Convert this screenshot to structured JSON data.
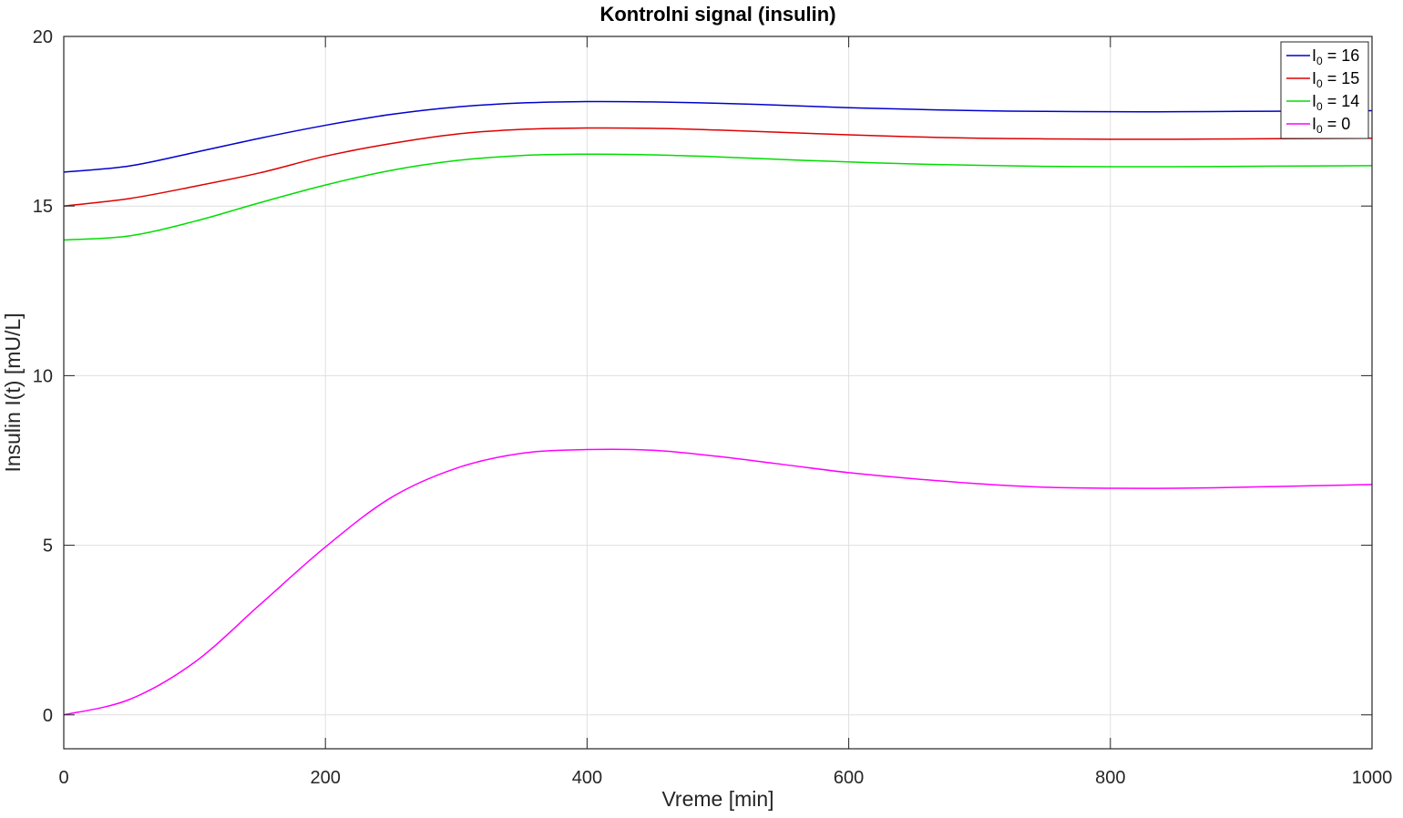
{
  "chart_data": {
    "type": "line",
    "title": "Kontrolni signal (insulin)",
    "xlabel": "Vreme [min]",
    "ylabel": "Insulin I(t) [mU/L]",
    "xlim": [
      0,
      1000
    ],
    "ylim": [
      -1,
      20
    ],
    "xticks": [
      0,
      200,
      400,
      600,
      800,
      1000
    ],
    "yticks": [
      0,
      5,
      10,
      15,
      20
    ],
    "xtick_labels": [
      "0",
      "200",
      "400",
      "600",
      "800",
      "1000"
    ],
    "ytick_labels": [
      "0",
      "5",
      "10",
      "15",
      "20"
    ],
    "grid": true,
    "legend_position": "top-right",
    "x": [
      0,
      50,
      100,
      150,
      200,
      250,
      300,
      350,
      400,
      450,
      500,
      550,
      600,
      650,
      700,
      750,
      800,
      850,
      900,
      950,
      1000
    ],
    "series": [
      {
        "name": "I_0 = 16",
        "legend": {
          "base": "I",
          "sub": "0",
          "rest": " = 16"
        },
        "color": "#0000cc",
        "values": [
          16.0,
          16.18,
          16.58,
          17.0,
          17.38,
          17.7,
          17.92,
          18.04,
          18.08,
          18.07,
          18.03,
          17.97,
          17.9,
          17.85,
          17.81,
          17.79,
          17.78,
          17.78,
          17.79,
          17.8,
          17.81
        ]
      },
      {
        "name": "I_0 = 15",
        "legend": {
          "base": "I",
          "sub": "0",
          "rest": " = 15"
        },
        "color": "#dd0000",
        "values": [
          15.0,
          15.22,
          15.58,
          15.98,
          16.47,
          16.84,
          17.12,
          17.26,
          17.3,
          17.29,
          17.24,
          17.17,
          17.1,
          17.04,
          17.0,
          16.98,
          16.97,
          16.97,
          16.98,
          16.99,
          17.0
        ]
      },
      {
        "name": "I_0 = 14",
        "legend": {
          "base": "I",
          "sub": "0",
          "rest": " = 14"
        },
        "color": "#00dd00",
        "values": [
          14.0,
          14.12,
          14.55,
          15.1,
          15.62,
          16.05,
          16.34,
          16.49,
          16.53,
          16.51,
          16.45,
          16.37,
          16.3,
          16.24,
          16.2,
          16.17,
          16.16,
          16.16,
          16.17,
          16.18,
          16.19
        ]
      },
      {
        "name": "I_0 = 0",
        "legend": {
          "base": "I",
          "sub": "0",
          "rest": " = 0"
        },
        "color": "#ff00ff",
        "values": [
          0.0,
          0.45,
          1.55,
          3.25,
          4.95,
          6.4,
          7.27,
          7.71,
          7.82,
          7.8,
          7.62,
          7.38,
          7.14,
          6.96,
          6.81,
          6.71,
          6.68,
          6.68,
          6.71,
          6.75,
          6.79
        ]
      }
    ]
  }
}
